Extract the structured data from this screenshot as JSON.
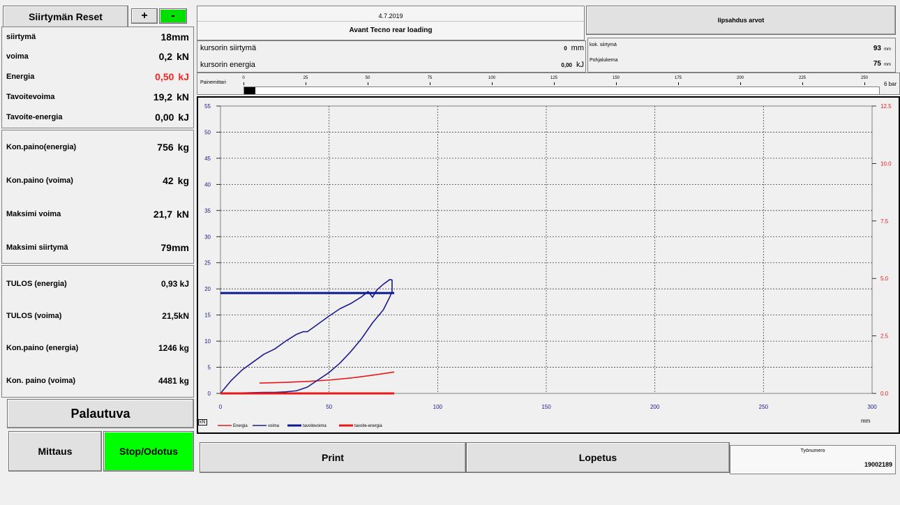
{
  "left": {
    "reset_button": "Siirtymän Reset",
    "plus_button": "+",
    "minus_button": "-",
    "top_rows": [
      {
        "label": "siirtymä",
        "value": "18",
        "unit": "mm"
      },
      {
        "label": "voima",
        "value": "0,2",
        "unit": "kN"
      },
      {
        "label": "Energia",
        "value": "0,50",
        "unit": "kJ"
      },
      {
        "label": "Tavoitevoima",
        "value": "19,2",
        "unit": "kN"
      },
      {
        "label": "Tavoite-energia",
        "value": "0,00",
        "unit": "kJ"
      }
    ],
    "mid_rows": [
      {
        "label": "Kon.paino(energia)",
        "value": "756",
        "unit": "kg"
      },
      {
        "label": "Kon.paino (voima)",
        "value": "42",
        "unit": "kg"
      },
      {
        "label": "Maksimi voima",
        "value": "21,7",
        "unit": "kN"
      },
      {
        "label": "Maksimi siirtymä",
        "value": "79",
        "unit": "mm"
      }
    ],
    "result_rows": [
      {
        "label": "TULOS (energia)",
        "value": "0,93 kJ"
      },
      {
        "label": "TULOS (voima)",
        "value": "21,5kN"
      },
      {
        "label": "Kon.paino (energia)",
        "value": "1246 kg"
      },
      {
        "label": "Kon. paino (voima)",
        "value": "4481 kg"
      }
    ],
    "palautuva_button": "Palautuva",
    "mittaus_button": "Mittaus",
    "stop_button": "Stop/Odotus"
  },
  "header": {
    "date": "4.7.2019",
    "title": "Avant Tecno rear loading",
    "lipsahdus_button": "lipsahdus arvot"
  },
  "cursor": {
    "siirtyma_label": "kursorin siirtymä",
    "siirtyma_value": "0",
    "siirtyma_unit": "mm",
    "energia_label": "kursorin energia",
    "energia_value": "0,00",
    "energia_unit": "kJ"
  },
  "lipsahdus": {
    "kok_label": "kok. siirtymä",
    "kok_value": "93",
    "kok_unit": "mm",
    "pohja_label": "Pohjalukema",
    "pohja_value": "75",
    "pohja_unit": "mm"
  },
  "pressure": {
    "label": "Painemittari",
    "ticks": [
      "0",
      "25",
      "50",
      "75",
      "100",
      "125",
      "150",
      "175",
      "200",
      "225",
      "250"
    ],
    "unit": "6 bar",
    "value": 0
  },
  "chart_data": {
    "type": "line",
    "xlabel": "mm",
    "ylabel": "kN",
    "xlim": [
      0,
      300
    ],
    "ylim_left": [
      0,
      55
    ],
    "ylim_right": [
      0,
      12.5
    ],
    "x_ticks": [
      0,
      50,
      100,
      150,
      200,
      250,
      300
    ],
    "y_ticks_left": [
      0,
      5,
      10,
      15,
      20,
      25,
      30,
      35,
      40,
      45,
      50,
      55
    ],
    "y_ticks_right": [
      "0.0",
      "2.5",
      "5.0",
      "7.5",
      "10.0",
      "12.5"
    ],
    "grid": true,
    "legend_position": "bottom-left",
    "series": [
      {
        "name": "Energia",
        "axis": "right",
        "color": "#e81818",
        "x": [
          18,
          30,
          40,
          50,
          60,
          70,
          80
        ],
        "y": [
          0.45,
          0.48,
          0.52,
          0.58,
          0.67,
          0.79,
          0.93
        ]
      },
      {
        "name": "voima",
        "axis": "left",
        "color": "#1a1a8c",
        "x": [
          0,
          5,
          10,
          15,
          20,
          25,
          30,
          35,
          38,
          40,
          45,
          50,
          55,
          60,
          65,
          68,
          70,
          72,
          75,
          78,
          79,
          79,
          78,
          75,
          70,
          65,
          60,
          55,
          50,
          45,
          40,
          35,
          30,
          25,
          20,
          10,
          0
        ],
        "y": [
          0,
          2.5,
          4.5,
          6,
          7.5,
          8.5,
          10,
          11.3,
          11.8,
          11.8,
          13.3,
          14.8,
          16.2,
          17.2,
          18.5,
          19.5,
          18.4,
          19.8,
          20.9,
          21.8,
          21.7,
          19.5,
          18.5,
          16,
          13.5,
          10.5,
          8,
          5.8,
          4,
          2.6,
          1.2,
          0.5,
          0.3,
          0.2,
          0.2,
          0.1,
          0
        ]
      },
      {
        "name": "tavoitevoima",
        "axis": "left",
        "color": "#0a1a8c",
        "x": [
          0,
          80
        ],
        "y": [
          19.2,
          19.2
        ]
      },
      {
        "name": "tavoite-energia",
        "axis": "right",
        "color": "#e81818",
        "x": [
          0,
          80
        ],
        "y": [
          0,
          0
        ]
      }
    ]
  },
  "bottom": {
    "print_button": "Print",
    "lopetus_button": "Lopetus",
    "tyonumero_label": "Työnumero",
    "tyonumero_value": "19002189"
  }
}
